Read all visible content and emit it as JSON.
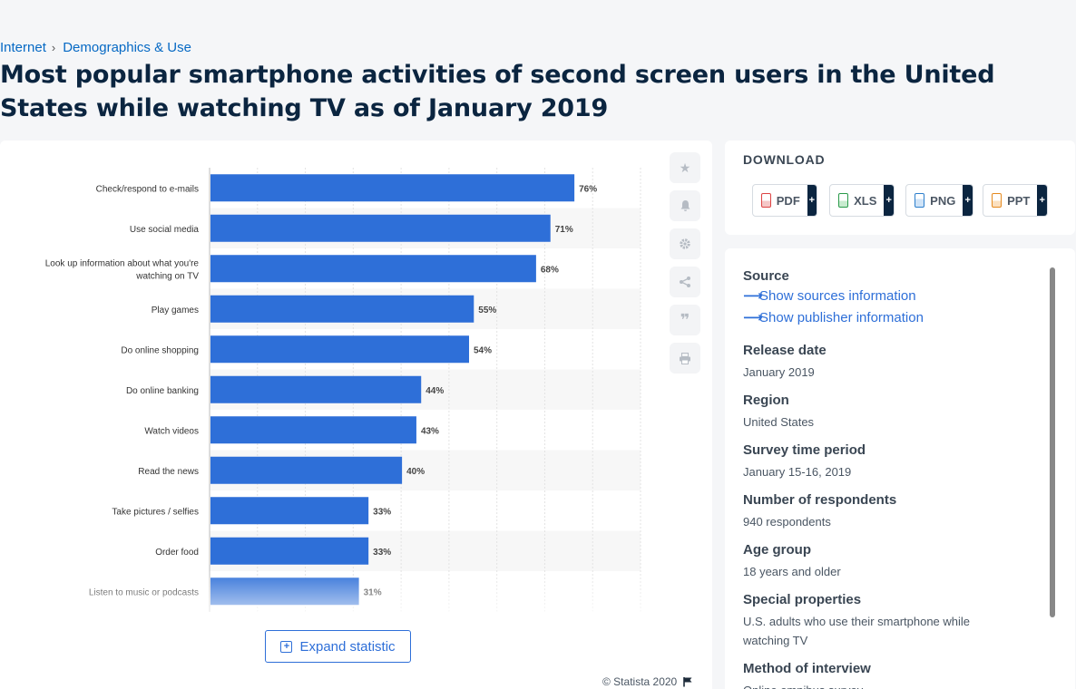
{
  "breadcrumb": [
    "Internet",
    "Demographics & Use"
  ],
  "page_title": "Most popular smartphone activities of second screen users in the United States while watching TV as of January 2019",
  "chart_data": {
    "type": "bar",
    "orientation": "horizontal",
    "title": "",
    "xlabel": "",
    "ylabel": "",
    "xlim": [
      0,
      90
    ],
    "grid": true,
    "bar_color": "#2e6fd8",
    "categories": [
      "Check/respond to e-mails",
      "Use social media",
      "Look up information about what you're watching on TV",
      "Play games",
      "Do online shopping",
      "Do online banking",
      "Watch videos",
      "Read the news",
      "Take pictures / selfies",
      "Order food",
      "Listen to music or podcasts"
    ],
    "values": [
      76,
      71,
      68,
      55,
      54,
      44,
      43,
      40,
      33,
      33,
      31
    ],
    "value_labels": [
      "76%",
      "71%",
      "68%",
      "55%",
      "54%",
      "44%",
      "43%",
      "40%",
      "33%",
      "33%",
      "31%"
    ]
  },
  "tools": [
    {
      "name": "favorite-star-icon"
    },
    {
      "name": "notification-bell-icon"
    },
    {
      "name": "settings-gear-icon"
    },
    {
      "name": "share-icon"
    },
    {
      "name": "cite-quote-icon"
    },
    {
      "name": "print-icon"
    }
  ],
  "expand_label": "Expand statistic",
  "copyright": "© Statista 2020",
  "download": {
    "title": "DOWNLOAD",
    "buttons": [
      "PDF",
      "XLS",
      "PNG",
      "PPT"
    ],
    "plus": "+"
  },
  "details": {
    "source_label": "Source",
    "show_sources": "Show sources information",
    "show_publisher": "Show publisher information",
    "release_date_label": "Release date",
    "release_date": "January 2019",
    "region_label": "Region",
    "region": "United States",
    "survey_period_label": "Survey time period",
    "survey_period": "January 15-16, 2019",
    "respondents_label": "Number of respondents",
    "respondents": "940 respondents",
    "age_group_label": "Age group",
    "age_group": "18 years and older",
    "special_label": "Special properties",
    "special": "U.S. adults who use their smartphone while watching TV",
    "method_label": "Method of interview",
    "method": "Online omnibus survey"
  }
}
